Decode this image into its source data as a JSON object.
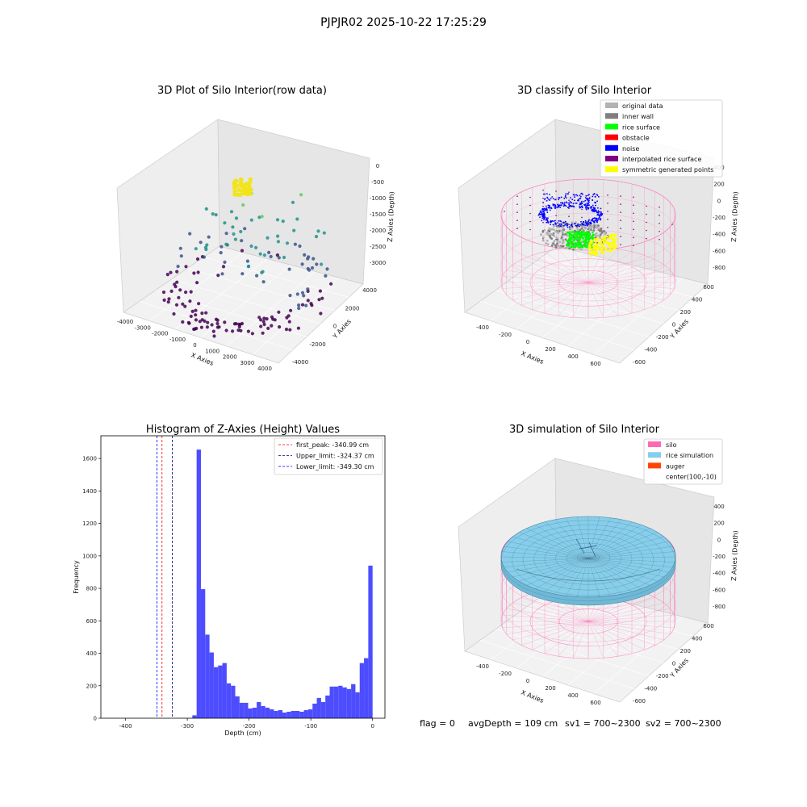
{
  "figure": {
    "suptitle": "PJPJR02 2025-10-22 17:25:29",
    "footer": {
      "flag": "flag = 0",
      "avg_depth": "avgDepth = 109 cm",
      "sv1": "sv1 = 700~2300",
      "sv2": "sv2 = 700~2300"
    }
  },
  "chart_data": [
    {
      "type": "scatter",
      "panel": "top-left",
      "title": "3D Plot of Silo Interior(row data)",
      "xlabel": "X Axies",
      "ylabel": "Y Axies",
      "zlabel": "Z Axies (Depth)",
      "x_ticks": [
        "-4000",
        "-3000",
        "-2000",
        "-1000",
        "0",
        "1000",
        "2000",
        "3000",
        "4000"
      ],
      "y_ticks": [
        "-4000",
        "-2000",
        "0",
        "2000",
        "4000"
      ],
      "z_ticks": [
        "0",
        "-500",
        "-1000",
        "-1500",
        "-2000",
        "-2500",
        "-3000"
      ],
      "xlim": [
        -4000,
        4000
      ],
      "ylim": [
        -4000,
        4000
      ],
      "zlim": [
        -3300,
        0
      ],
      "colormap": [
        "#440154",
        "#3b528b",
        "#21918c",
        "#5ec962",
        "#fde725"
      ]
    },
    {
      "type": "scatter",
      "panel": "top-right",
      "title": "3D classify of Silo Interior",
      "xlabel": "X Axies",
      "ylabel": "Y Axies",
      "zlabel": "Z Axies (Depth)",
      "x_ticks": [
        "-400",
        "-200",
        "0",
        "200",
        "400",
        "600"
      ],
      "y_ticks": [
        "-600",
        "-400",
        "-200",
        "0",
        "200",
        "400",
        "600"
      ],
      "z_ticks": [
        "400",
        "200",
        "0",
        "-200",
        "-400",
        "-600",
        "-800"
      ],
      "legend": [
        {
          "label": "original data",
          "color": "#b3b3b3"
        },
        {
          "label": "inner wall",
          "color": "#808080"
        },
        {
          "label": "rice surface",
          "color": "#00ff00"
        },
        {
          "label": "obstacle",
          "color": "#ff0000"
        },
        {
          "label": "noise",
          "color": "#0000ff"
        },
        {
          "label": "interpolated rice surface",
          "color": "#800080"
        },
        {
          "label": "symmetric generated points",
          "color": "#ffff00"
        }
      ],
      "legend_placement": "top-right"
    },
    {
      "type": "bar",
      "panel": "bottom-left",
      "title": "Histogram of Z-Axies (Height) Values",
      "xlabel": "Depth (cm)",
      "ylabel": "Frequency",
      "xlim": [
        -440,
        20
      ],
      "ylim": [
        0,
        1740
      ],
      "x_ticks": [
        -400,
        -300,
        -200,
        -100,
        0
      ],
      "y_ticks": [
        0,
        200,
        400,
        600,
        800,
        1000,
        1200,
        1400,
        1600
      ],
      "bin_width": 6.95,
      "bins": [
        {
          "x": -348.6,
          "value": 18
        },
        {
          "x": -341.6,
          "value": 1655
        },
        {
          "x": -334.7,
          "value": 795
        },
        {
          "x": -327.7,
          "value": 515
        },
        {
          "x": -320.8,
          "value": 405
        },
        {
          "x": -313.8,
          "value": 315
        },
        {
          "x": -306.9,
          "value": 325
        },
        {
          "x": -299.9,
          "value": 340
        },
        {
          "x": -293.0,
          "value": 215
        },
        {
          "x": -286.0,
          "value": 200
        },
        {
          "x": -279.1,
          "value": 135
        },
        {
          "x": -272.1,
          "value": 95
        },
        {
          "x": -265.2,
          "value": 95
        },
        {
          "x": -258.2,
          "value": 60
        },
        {
          "x": -251.3,
          "value": 65
        },
        {
          "x": -244.3,
          "value": 100
        },
        {
          "x": -237.4,
          "value": 75
        },
        {
          "x": -230.4,
          "value": 65
        },
        {
          "x": -223.5,
          "value": 55
        },
        {
          "x": -216.5,
          "value": 45
        },
        {
          "x": -209.6,
          "value": 50
        },
        {
          "x": -202.6,
          "value": 35
        },
        {
          "x": -195.7,
          "value": 40
        },
        {
          "x": -188.7,
          "value": 45
        },
        {
          "x": -181.8,
          "value": 45
        },
        {
          "x": -174.8,
          "value": 40
        },
        {
          "x": -167.9,
          "value": 50
        },
        {
          "x": -160.9,
          "value": 55
        },
        {
          "x": -154.0,
          "value": 90
        },
        {
          "x": -147.0,
          "value": 125
        },
        {
          "x": -140.1,
          "value": 100
        },
        {
          "x": -133.1,
          "value": 140
        },
        {
          "x": -126.2,
          "value": 195
        },
        {
          "x": -119.2,
          "value": 195
        },
        {
          "x": -112.3,
          "value": 200
        },
        {
          "x": -105.3,
          "value": 190
        },
        {
          "x": -98.4,
          "value": 180
        },
        {
          "x": -91.4,
          "value": 210
        },
        {
          "x": -84.5,
          "value": 160
        },
        {
          "x": -77.5,
          "value": 340
        },
        {
          "x": -70.6,
          "value": 370
        },
        {
          "x": -63.6,
          "value": 940
        }
      ],
      "vlines": [
        {
          "label": "first_peak: -340.99 cm",
          "x": -340.99,
          "color": "#ff0000"
        },
        {
          "label": "Upper_limit: -324.37 cm",
          "x": -324.37,
          "color": "#000080"
        },
        {
          "label": "Lower_limit: -349.30 cm",
          "x": -349.3,
          "color": "#0000ff"
        }
      ],
      "bar_color": "#4d4dff",
      "legend_placement": "top-right"
    },
    {
      "type": "area",
      "panel": "bottom-right",
      "title": "3D simulation of Silo Interior",
      "xlabel": "X Axies",
      "ylabel": "Y Axies",
      "zlabel": "Z Axies (Depth)",
      "x_ticks": [
        "-400",
        "-200",
        "0",
        "200",
        "400",
        "600"
      ],
      "y_ticks": [
        "-600",
        "-400",
        "-200",
        "0",
        "200",
        "400",
        "600"
      ],
      "z_ticks": [
        "400",
        "200",
        "0",
        "-200",
        "-400",
        "-600",
        "-800"
      ],
      "legend": [
        {
          "label": "silo",
          "color": "#ff69b4"
        },
        {
          "label": "rice simulation",
          "color": "#87ceeb"
        },
        {
          "label": "auger",
          "color": "#ff4500"
        },
        {
          "label": "center(100,-10)",
          "color": ""
        }
      ],
      "legend_placement": "top-right"
    }
  ]
}
